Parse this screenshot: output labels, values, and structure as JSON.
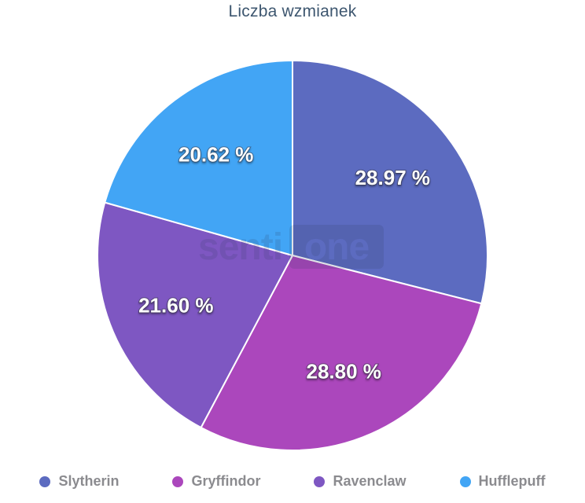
{
  "header": {
    "title": "Liczba wzmianek"
  },
  "chart_data": {
    "type": "pie",
    "title": "Liczba wzmianek",
    "unit": "%",
    "start_angle_deg": 0,
    "direction": "clockwise",
    "legend_position": "bottom",
    "slices": [
      {
        "name": "Slytherin",
        "value": 28.97,
        "label": "28.97 %",
        "color": "#5c6bc0"
      },
      {
        "name": "Gryffindor",
        "value": 28.8,
        "label": "28.80 %",
        "color": "#ab47bc"
      },
      {
        "name": "Ravenclaw",
        "value": 21.6,
        "label": "21.60 %",
        "color": "#7e57c2"
      },
      {
        "name": "Hufflepuff",
        "value": 20.62,
        "label": "20.62 %",
        "color": "#42a5f5"
      }
    ]
  },
  "watermark": {
    "left": "senti",
    "boxed": "one"
  },
  "style": {
    "title_color": "#3d566f",
    "legend_text_color": "#8b8b8f",
    "slice_border_color": "#ffffff",
    "watermark_color": "rgba(38,54,86,0.15)"
  }
}
